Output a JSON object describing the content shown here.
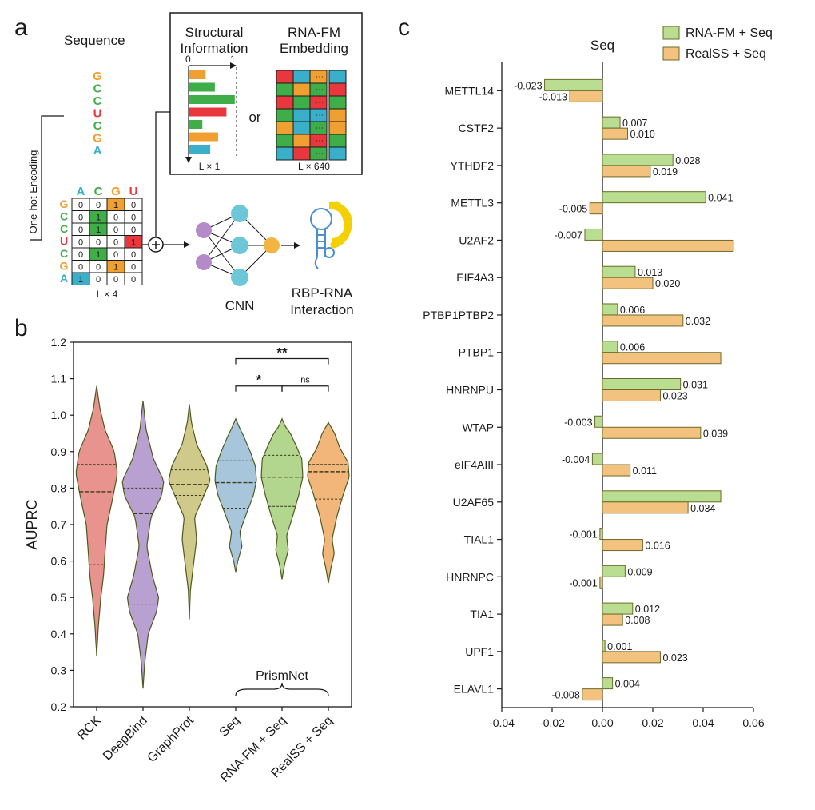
{
  "panel_a": {
    "panel_label": "a",
    "sequence_title": "Sequence",
    "sequence": [
      {
        "base": "G",
        "color": "#f0a030"
      },
      {
        "base": "C",
        "color": "#3fae49"
      },
      {
        "base": "C",
        "color": "#3fae49"
      },
      {
        "base": "U",
        "color": "#e8383d"
      },
      {
        "base": "C",
        "color": "#3fae49"
      },
      {
        "base": "G",
        "color": "#f0a030"
      },
      {
        "base": "A",
        "color": "#3aafc9"
      }
    ],
    "onehot_label": "One-hot Encoding",
    "onehot_header": [
      {
        "base": "A",
        "color": "#3aafc9"
      },
      {
        "base": "C",
        "color": "#3fae49"
      },
      {
        "base": "G",
        "color": "#f0a030"
      },
      {
        "base": "U",
        "color": "#e8383d"
      }
    ],
    "onehot_rows": [
      [
        "0",
        "0",
        "1",
        "0"
      ],
      [
        "0",
        "1",
        "0",
        "0"
      ],
      [
        "0",
        "1",
        "0",
        "0"
      ],
      [
        "0",
        "0",
        "0",
        "1"
      ],
      [
        "0",
        "1",
        "0",
        "0"
      ],
      [
        "0",
        "0",
        "1",
        "0"
      ],
      [
        "1",
        "0",
        "0",
        "0"
      ]
    ],
    "onehot_dim": "L × 4",
    "struct_title": "Structural\nInformation",
    "struct_axis_min": "0",
    "struct_axis_max": "1",
    "struct_bars": [
      {
        "value": 0.35,
        "color": "#f0a030"
      },
      {
        "value": 0.55,
        "color": "#3fae49"
      },
      {
        "value": 0.98,
        "color": "#3fae49"
      },
      {
        "value": 0.8,
        "color": "#e8383d"
      },
      {
        "value": 0.28,
        "color": "#3fae49"
      },
      {
        "value": 0.62,
        "color": "#f0a030"
      },
      {
        "value": 0.45,
        "color": "#3aafc9"
      }
    ],
    "struct_dim": "L × 1",
    "or_label": "or",
    "emb_title": "RNA-FM\nEmbedding",
    "emb_dim": "L × 640",
    "emb_grid": [
      [
        "#e8383d",
        "#3aafc9",
        "#f0a030",
        "#3aafc9"
      ],
      [
        "#3fae49",
        "#f0a030",
        "#3fae49",
        "#e8383d"
      ],
      [
        "#e8383d",
        "#3fae49",
        "#e8383d",
        "#3fae49"
      ],
      [
        "#3fae49",
        "#3aafc9",
        "#3aafc9",
        "#f0a030"
      ],
      [
        "#f0a030",
        "#3aafc9",
        "#3fae49",
        "#f0a030"
      ],
      [
        "#3fae49",
        "#f0a030",
        "#e8383d",
        "#3fae49"
      ],
      [
        "#3aafc9",
        "#e8383d",
        "#3fae49",
        "#3aafc9"
      ]
    ],
    "cnn_label": "CNN",
    "output_label": "RBP-RNA\nInteraction",
    "colors": {
      "purple": "#b58ac9",
      "teal": "#6cc8d8",
      "orange": "#f2b640",
      "blue": "#4a8fd4",
      "yellow": "#f5d000"
    }
  },
  "panel_b": {
    "panel_label": "b",
    "chart_data": {
      "type": "violin",
      "ylabel": "AUPRC",
      "ylim": [
        0.2,
        1.2
      ],
      "yticks": [
        "0.2",
        "0.3",
        "0.4",
        "0.5",
        "0.6",
        "0.7",
        "0.8",
        "0.9",
        "1.0",
        "1.1",
        "1.2"
      ],
      "categories": [
        {
          "name": "RCK",
          "color": "#e8938d",
          "min": 0.34,
          "max": 1.08,
          "q1": 0.59,
          "median": 0.79,
          "q3": 0.865,
          "profile": [
            [
              0.34,
              0.0
            ],
            [
              0.42,
              0.08
            ],
            [
              0.5,
              0.2
            ],
            [
              0.56,
              0.33
            ],
            [
              0.62,
              0.4
            ],
            [
              0.7,
              0.5
            ],
            [
              0.78,
              0.8
            ],
            [
              0.84,
              1.0
            ],
            [
              0.9,
              0.85
            ],
            [
              0.96,
              0.4
            ],
            [
              1.02,
              0.15
            ],
            [
              1.08,
              0.0
            ]
          ]
        },
        {
          "name": "DeepBind",
          "color": "#b8a0d0",
          "min": 0.25,
          "max": 1.04,
          "q1": 0.48,
          "median": 0.73,
          "q3": 0.8,
          "profile": [
            [
              0.25,
              0.0
            ],
            [
              0.32,
              0.08
            ],
            [
              0.4,
              0.25
            ],
            [
              0.46,
              0.65
            ],
            [
              0.5,
              0.75
            ],
            [
              0.56,
              0.45
            ],
            [
              0.64,
              0.18
            ],
            [
              0.72,
              0.38
            ],
            [
              0.78,
              0.9
            ],
            [
              0.82,
              1.0
            ],
            [
              0.88,
              0.5
            ],
            [
              0.96,
              0.15
            ],
            [
              1.04,
              0.0
            ]
          ]
        },
        {
          "name": "GraphProt",
          "color": "#cfc98a",
          "min": 0.44,
          "max": 1.03,
          "q1": 0.78,
          "median": 0.81,
          "q3": 0.85,
          "profile": [
            [
              0.44,
              0.0
            ],
            [
              0.52,
              0.05
            ],
            [
              0.6,
              0.22
            ],
            [
              0.66,
              0.35
            ],
            [
              0.72,
              0.25
            ],
            [
              0.78,
              0.7
            ],
            [
              0.82,
              1.0
            ],
            [
              0.86,
              0.85
            ],
            [
              0.92,
              0.35
            ],
            [
              0.98,
              0.1
            ],
            [
              1.03,
              0.0
            ]
          ]
        },
        {
          "name": "Seq",
          "color": "#a7c6dc",
          "min": 0.57,
          "max": 0.99,
          "q1": 0.745,
          "median": 0.815,
          "q3": 0.875,
          "profile": [
            [
              0.57,
              0.0
            ],
            [
              0.6,
              0.1
            ],
            [
              0.64,
              0.3
            ],
            [
              0.68,
              0.2
            ],
            [
              0.72,
              0.45
            ],
            [
              0.78,
              0.85
            ],
            [
              0.82,
              1.0
            ],
            [
              0.86,
              0.95
            ],
            [
              0.9,
              0.7
            ],
            [
              0.94,
              0.4
            ],
            [
              0.97,
              0.15
            ],
            [
              0.99,
              0.0
            ]
          ]
        },
        {
          "name": "RNA-FM + Seq",
          "color": "#b2d68e",
          "min": 0.55,
          "max": 0.99,
          "q1": 0.75,
          "median": 0.83,
          "q3": 0.89,
          "profile": [
            [
              0.55,
              0.0
            ],
            [
              0.59,
              0.12
            ],
            [
              0.63,
              0.3
            ],
            [
              0.67,
              0.22
            ],
            [
              0.72,
              0.5
            ],
            [
              0.78,
              0.8
            ],
            [
              0.83,
              1.0
            ],
            [
              0.88,
              0.95
            ],
            [
              0.92,
              0.65
            ],
            [
              0.95,
              0.4
            ],
            [
              0.97,
              0.15
            ],
            [
              0.99,
              0.0
            ]
          ]
        },
        {
          "name": "RealSS + Seq",
          "color": "#f2b67a",
          "min": 0.54,
          "max": 0.98,
          "q1": 0.77,
          "median": 0.845,
          "q3": 0.865,
          "profile": [
            [
              0.54,
              0.0
            ],
            [
              0.58,
              0.12
            ],
            [
              0.62,
              0.28
            ],
            [
              0.66,
              0.18
            ],
            [
              0.72,
              0.4
            ],
            [
              0.78,
              0.7
            ],
            [
              0.83,
              1.0
            ],
            [
              0.87,
              0.95
            ],
            [
              0.91,
              0.55
            ],
            [
              0.95,
              0.3
            ],
            [
              0.98,
              0.0
            ]
          ]
        }
      ],
      "significance": [
        {
          "from": 3,
          "to": 5,
          "label": "**",
          "y": 1.155
        },
        {
          "from": 3,
          "to": 4,
          "label": "*",
          "y": 1.08
        },
        {
          "from": 4,
          "to": 5,
          "label": "ns",
          "y": 1.08
        }
      ],
      "group_label": "PrismNet",
      "group_from": 3,
      "group_to": 5,
      "violin_edge_color": "#4d5a1f"
    }
  },
  "panel_c": {
    "panel_label": "c",
    "chart_data": {
      "type": "bar",
      "orientation": "horizontal",
      "title": "Seq",
      "xlim": [
        -0.04,
        0.06
      ],
      "xticks": [
        "-0.04",
        "-0.02",
        "0.00",
        "0.02",
        "0.04",
        "0.06"
      ],
      "categories": [
        "METTL14",
        "CSTF2",
        "YTHDF2",
        "METTL3",
        "U2AF2",
        "EIF4A3",
        "PTBP1PTBP2",
        "PTBP1",
        "HNRNPU",
        "WTAP",
        "eIF4AIII",
        "U2AF65",
        "TIAL1",
        "HNRNPC",
        "TIA1",
        "UPF1",
        "ELAVL1"
      ],
      "series": [
        {
          "name": "RNA-FM + Seq",
          "color": "#b9dd91",
          "values": [
            -0.023,
            0.007,
            0.028,
            0.041,
            -0.007,
            0.013,
            0.006,
            0.006,
            0.031,
            -0.003,
            -0.004,
            0.047,
            -0.001,
            0.009,
            0.012,
            0.001,
            0.004
          ],
          "labels": [
            "-0.023",
            "0.007",
            "0.028",
            "0.041",
            "-0.007",
            "0.013",
            "0.006",
            "0.006",
            "0.031",
            "-0.003",
            "-0.004",
            "",
            "-0.001",
            "0.009",
            "0.012",
            "0.001",
            "0.004"
          ]
        },
        {
          "name": "RealSS + Seq",
          "color": "#f3c27f",
          "values": [
            -0.013,
            0.01,
            0.019,
            -0.005,
            0.052,
            0.02,
            0.032,
            0.047,
            0.023,
            0.039,
            0.011,
            0.034,
            0.016,
            -0.001,
            0.008,
            0.023,
            -0.008
          ],
          "labels": [
            "-0.013",
            "0.010",
            "0.019",
            "-0.005",
            "",
            "0.020",
            "0.032",
            "",
            "0.023",
            "0.039",
            "0.011",
            "0.034",
            "0.016",
            "-0.001",
            "0.008",
            "0.023",
            "-0.008"
          ]
        }
      ],
      "bar_edge_color": "#6b6b2a",
      "legend_position": "top-right"
    }
  }
}
